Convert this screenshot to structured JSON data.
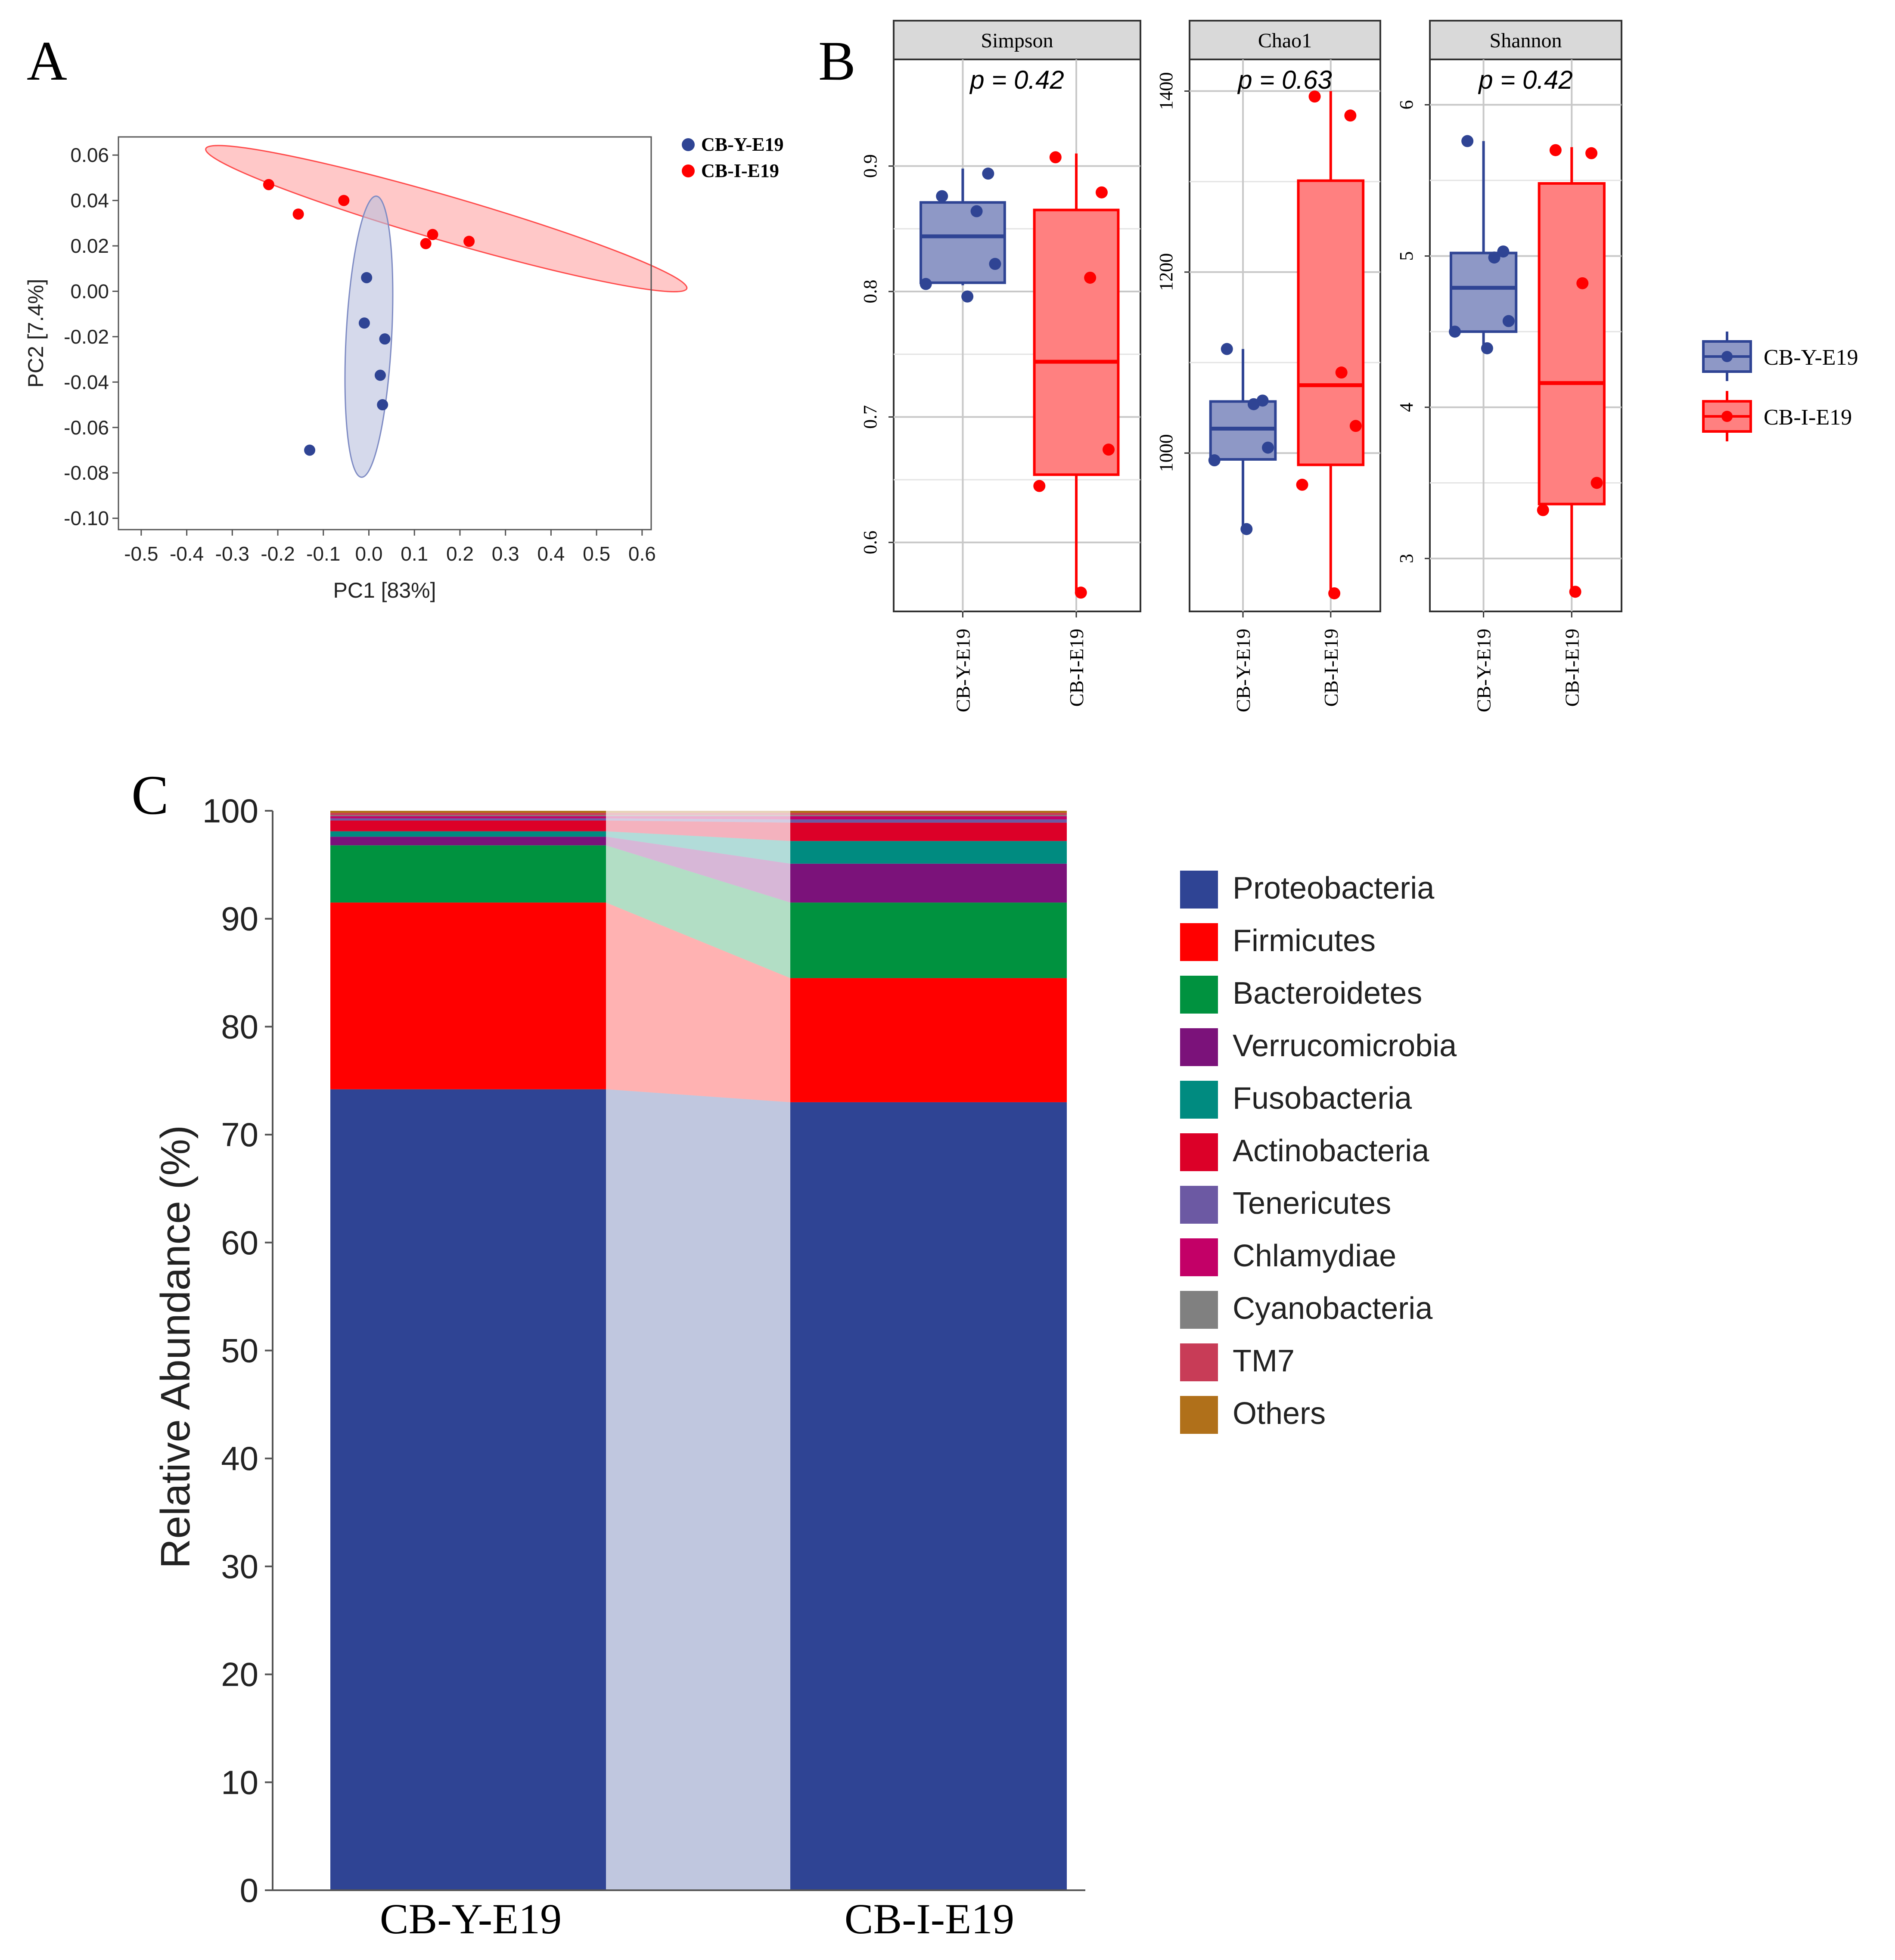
{
  "panel_labels": {
    "a": "A",
    "b": "B",
    "c": "C"
  },
  "colors": {
    "group_y": "#2f4494",
    "group_i": "#ff0000",
    "ellipse_y": "#b9c0de",
    "ellipse_i": "#ff9a9a"
  },
  "chart_data": [
    {
      "id": "pcoa",
      "type": "scatter",
      "xlabel": "PC1 [83%]",
      "ylabel": "PC2 [7.4%]",
      "xlim": [
        -0.55,
        0.62
      ],
      "ylim": [
        -0.105,
        0.068
      ],
      "xticks": [
        "-0.5",
        "-0.4",
        "-0.3",
        "-0.2",
        "-0.1",
        "0.0",
        "0.1",
        "0.2",
        "0.3",
        "0.4",
        "0.5",
        "0.6"
      ],
      "xtick_values": [
        -0.5,
        -0.4,
        -0.3,
        -0.2,
        -0.1,
        0.0,
        0.1,
        0.2,
        0.3,
        0.4,
        0.5,
        0.6
      ],
      "yticks": [
        "0.06",
        "0.04",
        "0.02",
        "0.00",
        "-0.02",
        "-0.04",
        "-0.06",
        "-0.08",
        "-0.10"
      ],
      "ytick_values": [
        0.06,
        0.04,
        0.02,
        0.0,
        -0.02,
        -0.04,
        -0.06,
        -0.08,
        -0.1
      ],
      "legend": [
        "CB-Y-E19",
        "CB-I-E19"
      ],
      "series": [
        {
          "name": "CB-Y-E19",
          "x": [
            -0.005,
            -0.01,
            0.035,
            0.025,
            0.03,
            -0.13
          ],
          "y": [
            0.006,
            -0.014,
            -0.021,
            -0.037,
            -0.05,
            -0.07
          ]
        },
        {
          "name": "CB-I-E19",
          "x": [
            -0.22,
            -0.155,
            -0.055,
            0.14,
            0.125,
            0.22
          ],
          "y": [
            0.047,
            0.034,
            0.04,
            0.025,
            0.021,
            0.022
          ]
        }
      ],
      "ellipses": [
        {
          "group": "CB-Y-E19",
          "cx": 0.0,
          "cy": -0.02,
          "a": 0.05,
          "b": 0.062,
          "angle_deg": 3
        },
        {
          "group": "CB-I-E19",
          "cx": 0.17,
          "cy": 0.032,
          "a": 0.55,
          "b": 0.0052,
          "angle_deg": 180
        }
      ]
    },
    {
      "id": "simpson",
      "type": "box",
      "title": "Simpson",
      "pvalue": "p = 0.42",
      "ylim": [
        0.545,
        0.985
      ],
      "yticks": [
        "0.6",
        "0.7",
        "0.8",
        "0.9"
      ],
      "ytick_values": [
        0.6,
        0.7,
        0.8,
        0.9
      ],
      "categories": [
        "CB-Y-E19",
        "CB-I-E19"
      ],
      "boxes": [
        {
          "group": "CB-Y-E19",
          "min": 0.805,
          "q1": 0.807,
          "median": 0.844,
          "q3": 0.871,
          "max": 0.898,
          "points": [
            0.876,
            0.894,
            0.864,
            0.822,
            0.806,
            0.796
          ]
        },
        {
          "group": "CB-I-E19",
          "min": 0.56,
          "q1": 0.654,
          "median": 0.744,
          "q3": 0.865,
          "max": 0.91,
          "points": [
            0.907,
            0.879,
            0.811,
            0.674,
            0.645,
            0.56
          ]
        }
      ]
    },
    {
      "id": "chao1",
      "type": "box",
      "title": "Chao1",
      "pvalue": "p = 0.63",
      "ylim": [
        825,
        1435
      ],
      "yticks": [
        "1000",
        "1200",
        "1400"
      ],
      "ytick_values": [
        1000,
        1200,
        1400
      ],
      "categories": [
        "CB-Y-E19",
        "CB-I-E19"
      ],
      "boxes": [
        {
          "group": "CB-Y-E19",
          "min": 916,
          "q1": 993,
          "median": 1027,
          "q3": 1057,
          "max": 1115,
          "points": [
            1115,
            1058,
            1054,
            1006,
            992,
            916
          ]
        },
        {
          "group": "CB-I-E19",
          "min": 845,
          "q1": 987,
          "median": 1075,
          "q3": 1301,
          "max": 1400,
          "points": [
            1394,
            1373,
            1089,
            1030,
            965,
            845
          ]
        }
      ]
    },
    {
      "id": "shannon",
      "type": "box",
      "title": "Shannon",
      "pvalue": "p = 0.42",
      "ylim": [
        2.65,
        6.3
      ],
      "yticks": [
        "3",
        "4",
        "5",
        "6"
      ],
      "ytick_values": [
        3,
        4,
        5,
        6
      ],
      "categories": [
        "CB-Y-E19",
        "CB-I-E19"
      ],
      "boxes": [
        {
          "group": "CB-Y-E19",
          "min": 4.4,
          "q1": 4.5,
          "median": 4.79,
          "q3": 5.02,
          "max": 5.76,
          "points": [
            5.76,
            5.03,
            4.99,
            4.57,
            4.5,
            4.39
          ]
        },
        {
          "group": "CB-I-E19",
          "min": 2.78,
          "q1": 3.36,
          "median": 4.16,
          "q3": 5.48,
          "max": 5.72,
          "points": [
            5.7,
            5.68,
            4.82,
            3.5,
            3.32,
            2.78
          ]
        }
      ]
    },
    {
      "id": "composition",
      "type": "bar",
      "stacked": true,
      "ylabel": "Relative Abundance (%)",
      "ylim": [
        0,
        100
      ],
      "yticks": [
        "0",
        "10",
        "20",
        "30",
        "40",
        "50",
        "60",
        "70",
        "80",
        "90",
        "100"
      ],
      "ytick_values": [
        0,
        10,
        20,
        30,
        40,
        50,
        60,
        70,
        80,
        90,
        100
      ],
      "categories": [
        "CB-Y-E19",
        "CB-I-E19"
      ],
      "series": [
        {
          "name": "Proteobacteria",
          "color": "#2f4494",
          "values": [
            74.2,
            73.0
          ]
        },
        {
          "name": "Firmicutes",
          "color": "#ff0000",
          "values": [
            17.3,
            11.5
          ]
        },
        {
          "name": "Bacteroidetes",
          "color": "#00923f",
          "values": [
            5.3,
            7.0
          ]
        },
        {
          "name": "Verrucomicrobia",
          "color": "#7b127a",
          "values": [
            0.8,
            3.6
          ]
        },
        {
          "name": "Fusobacteria",
          "color": "#008b80",
          "values": [
            0.5,
            2.1
          ]
        },
        {
          "name": "Actinobacteria",
          "color": "#dc0028",
          "values": [
            1.0,
            1.7
          ]
        },
        {
          "name": "Tenericutes",
          "color": "#6c59a3",
          "values": [
            0.2,
            0.3
          ]
        },
        {
          "name": "Chlamydiae",
          "color": "#c30067",
          "values": [
            0.2,
            0.3
          ]
        },
        {
          "name": "Cyanobacteria",
          "color": "#808080",
          "values": [
            0.1,
            0.1
          ]
        },
        {
          "name": "TM7",
          "color": "#c83c57",
          "values": [
            0.2,
            0.2
          ]
        },
        {
          "name": "Others",
          "color": "#b0701a",
          "values": [
            0.2,
            0.2
          ]
        }
      ]
    }
  ]
}
